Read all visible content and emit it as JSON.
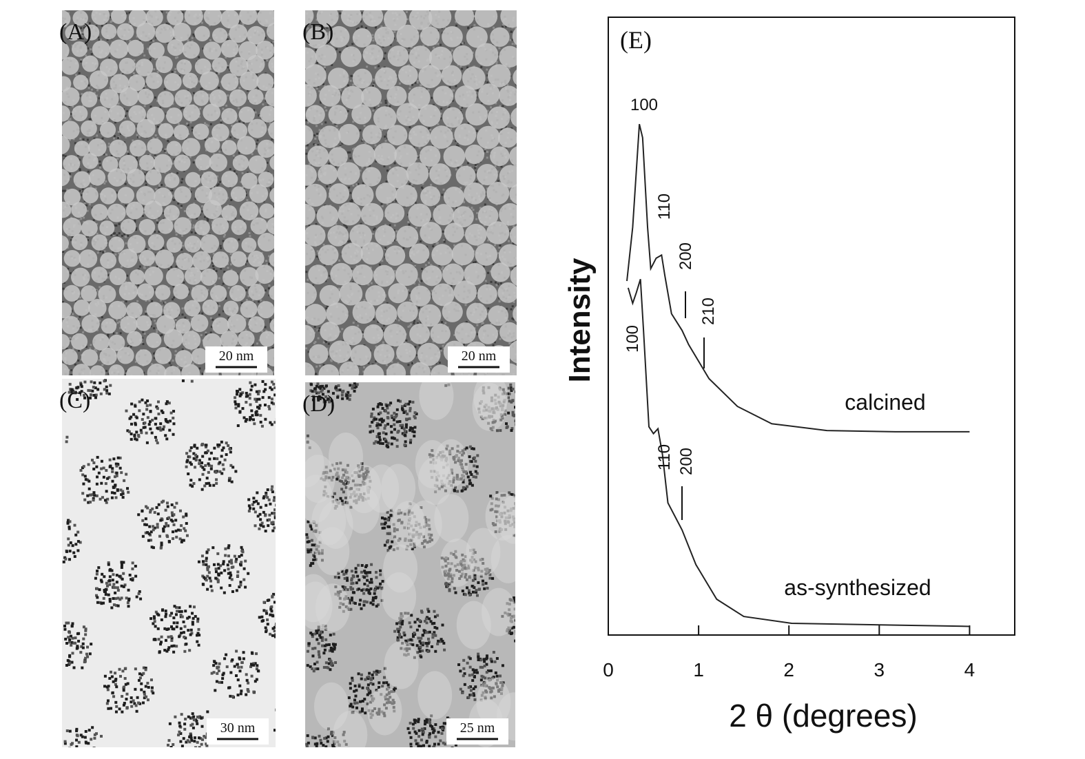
{
  "panels": [
    {
      "label": "(A)",
      "scale": "20 nm"
    },
    {
      "label": "(B)",
      "scale": "20 nm"
    },
    {
      "label": "(C)",
      "scale": "30 nm"
    },
    {
      "label": "(D)",
      "scale": "25 nm"
    }
  ],
  "chart_data": {
    "type": "line",
    "panel_label": "(E)",
    "x_label": "2 θ (degrees)",
    "y_label": "Intensity",
    "xlim": [
      0,
      4.5
    ],
    "xticks": [
      0,
      1,
      2,
      3,
      4
    ],
    "ylim": [
      0,
      100
    ],
    "annotations": [
      "100",
      "110",
      "200",
      "210",
      "100",
      "110",
      "200"
    ],
    "series": [
      {
        "name": "calcined",
        "color": "#222222",
        "x": [
          0.206,
          0.27,
          0.344,
          0.38,
          0.435,
          0.47,
          0.53,
          0.59,
          0.626,
          0.7,
          0.817,
          0.89,
          1.115,
          1.43,
          1.81,
          2.42,
          3.18,
          4.0
        ],
        "values": [
          57.3,
          66,
          82.7,
          80.5,
          66,
          59.3,
          61,
          61.5,
          58.2,
          52,
          49.3,
          47,
          41.5,
          37,
          34.2,
          33.1,
          32.9,
          32.9
        ]
      },
      {
        "name": "as-synthesized",
        "color": "#222222",
        "x": [
          0.22,
          0.27,
          0.31,
          0.356,
          0.39,
          0.45,
          0.5,
          0.55,
          0.6,
          0.66,
          0.817,
          0.97,
          1.2,
          1.5,
          2.03,
          3.18,
          4.0
        ],
        "values": [
          56.2,
          53.7,
          55.4,
          57.6,
          49.3,
          33.7,
          32.6,
          33.4,
          29.2,
          21.4,
          17,
          11.4,
          5.8,
          3,
          1.9,
          1.6,
          1.4
        ]
      }
    ]
  }
}
